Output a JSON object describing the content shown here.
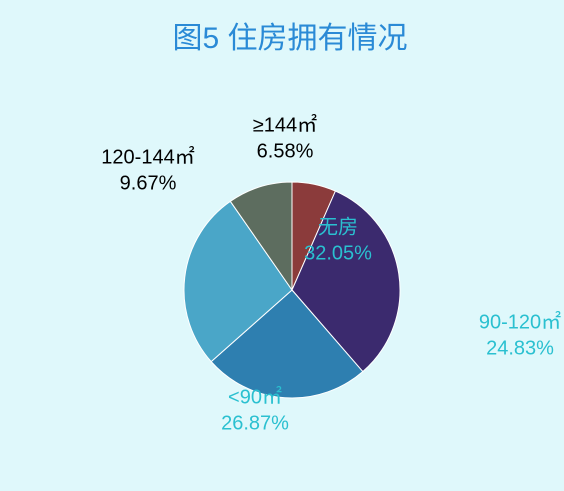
{
  "chart_data": {
    "type": "pie",
    "title": "图5 住房拥有情况",
    "categories": [
      "≥144㎡",
      "无房",
      "90-120㎡",
      "<90㎡",
      "120-144㎡"
    ],
    "values": [
      6.58,
      32.05,
      24.83,
      26.87,
      9.67
    ],
    "value_labels": [
      "6.58%",
      "32.05%",
      "24.83%",
      "26.87%",
      "9.67%"
    ],
    "colors": [
      "#8b3b3b",
      "#3b2a6e",
      "#2e7fb0",
      "#4aa6c8",
      "#5d6d5f"
    ]
  }
}
